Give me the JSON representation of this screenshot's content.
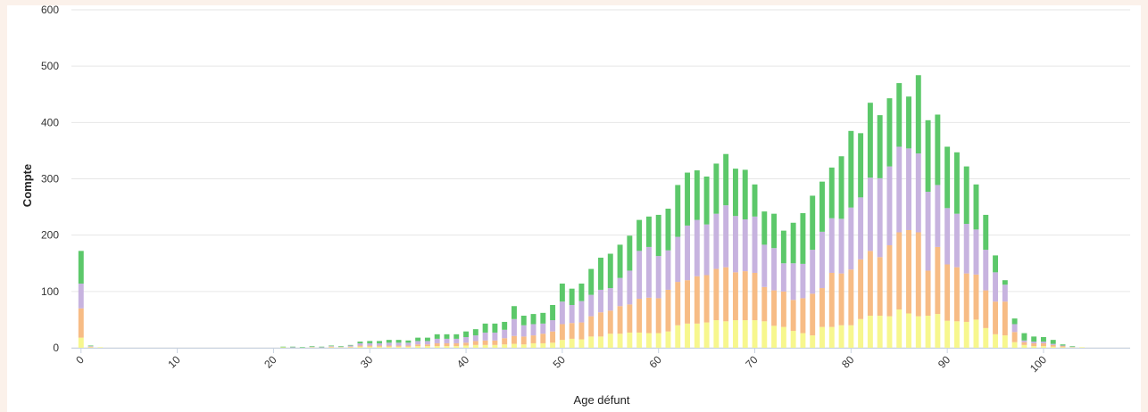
{
  "chart_data": {
    "type": "bar",
    "stacked": true,
    "title": "",
    "xlabel": "Age défunt",
    "ylabel": "Compte",
    "xlim": [
      -1,
      109
    ],
    "ylim": [
      0,
      600
    ],
    "xticks": [
      0,
      10,
      20,
      30,
      40,
      50,
      60,
      70,
      80,
      90,
      100
    ],
    "yticks": [
      0,
      100,
      200,
      300,
      400,
      500,
      600
    ],
    "grid": true,
    "legend": "none",
    "colors": [
      "#f7f78e",
      "#f7bc85",
      "#c7b3df",
      "#5cc86a"
    ],
    "x": [
      0,
      1,
      2,
      3,
      4,
      5,
      6,
      7,
      8,
      9,
      10,
      11,
      12,
      13,
      14,
      15,
      16,
      17,
      18,
      19,
      20,
      21,
      22,
      23,
      24,
      25,
      26,
      27,
      28,
      29,
      30,
      31,
      32,
      33,
      34,
      35,
      36,
      37,
      38,
      39,
      40,
      41,
      42,
      43,
      44,
      45,
      46,
      47,
      48,
      49,
      50,
      51,
      52,
      53,
      54,
      55,
      56,
      57,
      58,
      59,
      60,
      61,
      62,
      63,
      64,
      65,
      66,
      67,
      68,
      69,
      70,
      71,
      72,
      73,
      74,
      75,
      76,
      77,
      78,
      79,
      80,
      81,
      82,
      83,
      84,
      85,
      86,
      87,
      88,
      89,
      90,
      91,
      92,
      93,
      94,
      95,
      96,
      97,
      98,
      99,
      100,
      101,
      102,
      103,
      104,
      105
    ],
    "series": [
      {
        "values": [
          18,
          1,
          1,
          0,
          0,
          0,
          0,
          0,
          0,
          0,
          0,
          0,
          0,
          0,
          0,
          0,
          0,
          0,
          0,
          0,
          0,
          1,
          0,
          0,
          1,
          0,
          1,
          1,
          1,
          2,
          2,
          2,
          2,
          2,
          2,
          3,
          3,
          3,
          3,
          3,
          4,
          5,
          5,
          5,
          6,
          7,
          6,
          8,
          8,
          9,
          14,
          16,
          15,
          20,
          20,
          25,
          25,
          27,
          27,
          26,
          26,
          29,
          40,
          43,
          43,
          45,
          49,
          47,
          49,
          49,
          49,
          47,
          39,
          37,
          30,
          26,
          22,
          37,
          37,
          40,
          40,
          51,
          57,
          57,
          56,
          68,
          61,
          56,
          57,
          60,
          48,
          47,
          46,
          50,
          35,
          24,
          22,
          10,
          5,
          3,
          3,
          2,
          1,
          1,
          1,
          0
        ]
      },
      {
        "values": [
          52,
          1,
          0,
          0,
          0,
          0,
          0,
          0,
          0,
          0,
          0,
          0,
          0,
          0,
          0,
          0,
          0,
          0,
          0,
          0,
          0,
          0,
          0,
          0,
          0,
          0,
          1,
          0,
          1,
          2,
          2,
          2,
          2,
          2,
          2,
          3,
          3,
          5,
          5,
          5,
          5,
          7,
          8,
          8,
          11,
          14,
          14,
          14,
          17,
          20,
          28,
          28,
          30,
          36,
          43,
          41,
          49,
          50,
          60,
          63,
          62,
          74,
          77,
          77,
          84,
          84,
          91,
          96,
          85,
          87,
          84,
          61,
          63,
          63,
          55,
          62,
          74,
          69,
          96,
          92,
          99,
          106,
          115,
          104,
          126,
          137,
          148,
          149,
          80,
          119,
          100,
          96,
          86,
          80,
          67,
          58,
          60,
          18,
          5,
          5,
          5,
          3,
          2,
          0,
          0,
          0
        ]
      },
      {
        "values": [
          44,
          1,
          0,
          0,
          0,
          0,
          0,
          0,
          0,
          0,
          0,
          0,
          0,
          0,
          0,
          0,
          0,
          0,
          0,
          0,
          0,
          0,
          1,
          0,
          1,
          1,
          1,
          1,
          2,
          4,
          4,
          4,
          5,
          5,
          5,
          6,
          6,
          8,
          8,
          8,
          10,
          10,
          14,
          14,
          15,
          30,
          20,
          20,
          18,
          20,
          40,
          32,
          38,
          38,
          40,
          40,
          50,
          60,
          85,
          90,
          75,
          70,
          80,
          97,
          100,
          90,
          98,
          110,
          100,
          92,
          100,
          75,
          75,
          50,
          65,
          61,
          78,
          100,
          97,
          97,
          110,
          110,
          130,
          140,
          140,
          152,
          145,
          140,
          140,
          110,
          100,
          95,
          88,
          80,
          72,
          52,
          30,
          14,
          3,
          3,
          3,
          2,
          1,
          1,
          0,
          0
        ]
      },
      {
        "values": [
          58,
          1,
          0,
          0,
          0,
          0,
          0,
          0,
          0,
          0,
          0,
          0,
          0,
          0,
          0,
          0,
          0,
          0,
          0,
          0,
          0,
          1,
          1,
          1,
          1,
          1,
          1,
          1,
          1,
          3,
          4,
          4,
          5,
          5,
          4,
          6,
          6,
          8,
          8,
          8,
          10,
          11,
          16,
          16,
          14,
          23,
          17,
          18,
          19,
          27,
          32,
          29,
          31,
          46,
          57,
          61,
          59,
          62,
          55,
          54,
          73,
          74,
          92,
          94,
          88,
          85,
          89,
          91,
          84,
          88,
          57,
          59,
          61,
          58,
          72,
          90,
          96,
          89,
          90,
          111,
          136,
          114,
          133,
          112,
          121,
          113,
          92,
          139,
          127,
          125,
          109,
          109,
          102,
          80,
          62,
          30,
          8,
          10,
          13,
          9,
          8,
          7,
          2,
          1,
          0,
          0
        ]
      }
    ]
  }
}
